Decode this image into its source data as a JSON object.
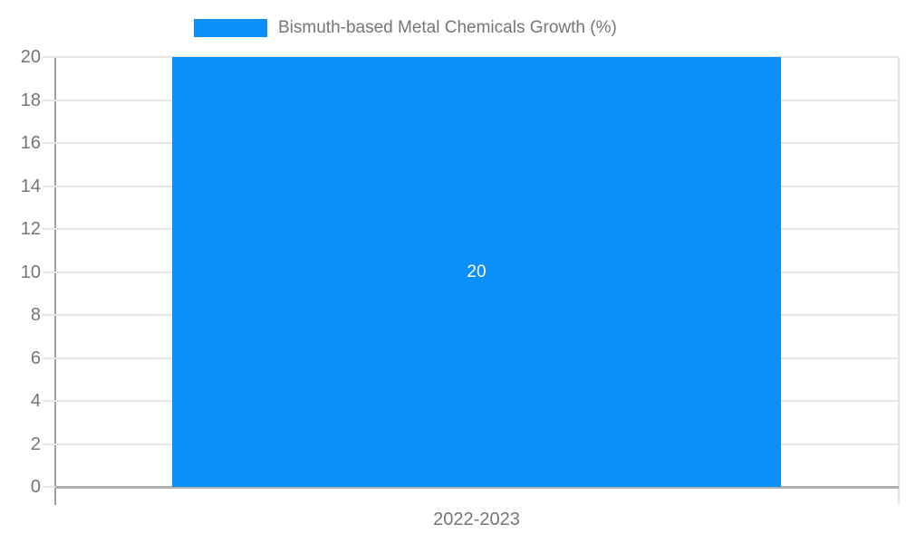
{
  "legend": {
    "label": "Bismuth-based Metal Chemicals Growth (%)"
  },
  "x_axis": {
    "category_label": "2022-2023"
  },
  "chart_data": {
    "type": "bar",
    "title": "Bismuth-based Metal Chemicals Growth (%)",
    "categories": [
      "2022-2023"
    ],
    "series": [
      {
        "name": "Bismuth-based Metal Chemicals Growth (%)",
        "values": [
          20
        ]
      }
    ],
    "bar_labels": [
      "20"
    ],
    "xlabel": "",
    "ylabel": "",
    "ylim": [
      0,
      20
    ],
    "yticks": [
      0,
      2,
      4,
      6,
      8,
      10,
      12,
      14,
      16,
      18,
      20
    ],
    "grid": true,
    "legend_position": "top",
    "colors": {
      "bar": "#0a90f8",
      "tick_text": "#757575",
      "legend_text": "#757575",
      "gridline": "#e6e6e6",
      "baseline": "#b0b0b0",
      "axis_line": "#9e9e9e",
      "right_border": "#e6e6e6",
      "bar_label_text": "#ffffff"
    }
  }
}
